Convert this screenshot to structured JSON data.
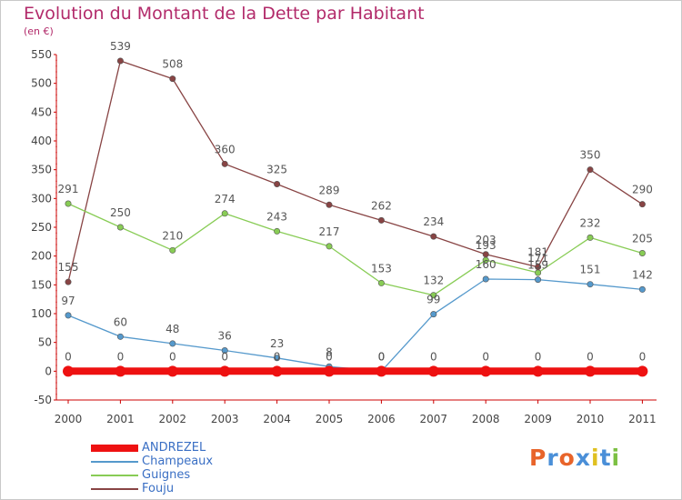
{
  "header": {
    "title": "Evolution du Montant de la Dette par Habitant",
    "subtitle": "(en €)"
  },
  "logo": {
    "text": "Proxiti",
    "colors": [
      "#e8642a",
      "#4a8fd8",
      "#e8642a",
      "#4a8fd8",
      "#e0c020",
      "#4a8fd8",
      "#7cc043"
    ]
  },
  "chart_data": {
    "type": "line",
    "title": "Evolution du Montant de la Dette par Habitant",
    "subtitle": "(en €)",
    "x": [
      "2000",
      "2001",
      "2002",
      "2003",
      "2004",
      "2005",
      "2006",
      "2007",
      "2008",
      "2009",
      "2010",
      "2011"
    ],
    "ylim": [
      -50,
      550
    ],
    "yticks": [
      -50,
      0,
      50,
      100,
      150,
      200,
      250,
      300,
      350,
      400,
      450,
      500,
      550
    ],
    "grid": false,
    "legend_position": "bottom-left",
    "series": [
      {
        "name": "ANDREZEL",
        "color": "#ee1111",
        "values": [
          0,
          0,
          0,
          0,
          0,
          0,
          0,
          0,
          0,
          0,
          0,
          0
        ],
        "labels": [
          "0",
          "0",
          "0",
          "0",
          "0",
          "0",
          "0",
          "0",
          "0",
          "0",
          "0",
          "0"
        ]
      },
      {
        "name": "Champeaux",
        "color": "#5599cc",
        "values": [
          97,
          60,
          48,
          36,
          23,
          8,
          0,
          99,
          160,
          159,
          151,
          142
        ],
        "labels": [
          "97",
          "60",
          "48",
          "36",
          "23",
          "8",
          "0",
          "99",
          "160",
          "159",
          "151",
          "142"
        ]
      },
      {
        "name": "Guignes",
        "color": "#88cc55",
        "values": [
          291,
          250,
          210,
          274,
          243,
          217,
          153,
          132,
          193,
          171,
          232,
          205
        ],
        "labels": [
          "291",
          "250",
          "210",
          "274",
          "243",
          "217",
          "153",
          "132",
          "193",
          "171",
          "232",
          "205"
        ]
      },
      {
        "name": "Fouju",
        "color": "#884444",
        "values": [
          155,
          539,
          508,
          360,
          325,
          289,
          262,
          234,
          203,
          181,
          350,
          290
        ],
        "labels": [
          "155",
          "539",
          "508",
          "360",
          "325",
          "289",
          "262",
          "234",
          "203",
          "181",
          "350",
          "290"
        ]
      }
    ]
  }
}
